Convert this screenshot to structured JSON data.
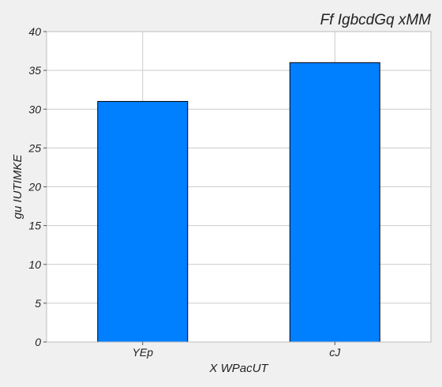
{
  "chart_data": {
    "type": "bar",
    "title": "Ff IgbcdGq xMM",
    "xlabel": "X WPacUT",
    "ylabel": "gu IUTIMKE",
    "categories": [
      "YEp",
      "cJ"
    ],
    "values": [
      31,
      36
    ],
    "ylim": [
      0,
      40
    ],
    "yticks": [
      0,
      5,
      10,
      15,
      20,
      25,
      30,
      35,
      40
    ],
    "grid": true,
    "bar_color": "#007fff",
    "bar_edge_color": "#000000",
    "background_color": "#f0f0f0",
    "plot_background_color": "#ffffff",
    "grid_color": "#cccccc"
  }
}
